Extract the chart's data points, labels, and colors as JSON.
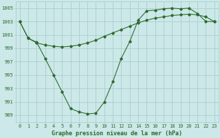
{
  "line1_x": [
    0,
    1,
    2,
    3,
    4,
    5,
    6,
    7,
    8,
    9,
    10,
    11,
    12,
    13,
    14,
    15,
    16,
    17,
    18,
    19,
    20,
    21,
    22,
    23
  ],
  "line1_y": [
    1003,
    1000.5,
    999.9,
    997.5,
    995.0,
    992.5,
    990.0,
    989.5,
    989.2,
    989.3,
    991.0,
    994.0,
    997.5,
    1000.0,
    1003.2,
    1004.6,
    1004.7,
    1004.9,
    1005.0,
    1004.9,
    1005.0,
    1004.2,
    1003.0,
    1003.0
  ],
  "line2_x": [
    0,
    1,
    2,
    3,
    4,
    5,
    6,
    7,
    8,
    9,
    10,
    11,
    12,
    13,
    14,
    15,
    16,
    17,
    18,
    19,
    20,
    21,
    22,
    23
  ],
  "line2_y": [
    1003,
    1000.5,
    999.8,
    999.5,
    999.3,
    999.2,
    999.3,
    999.5,
    999.8,
    1000.2,
    1000.8,
    1001.3,
    1001.8,
    1002.3,
    1002.8,
    1003.2,
    1003.5,
    1003.7,
    1003.9,
    1004.0,
    1004.1,
    1004.0,
    1003.7,
    1003.0
  ],
  "line_color": "#2d6a2d",
  "bg_color": "#cce8e8",
  "grid_color": "#aacece",
  "xlabel": "Graphe pression niveau de la mer (hPa)",
  "ylim": [
    988,
    1006
  ],
  "xlim": [
    -0.5,
    23.5
  ],
  "yticks": [
    989,
    991,
    993,
    995,
    997,
    999,
    1001,
    1003,
    1005
  ],
  "xticks": [
    0,
    1,
    2,
    3,
    4,
    5,
    6,
    7,
    8,
    9,
    10,
    11,
    12,
    13,
    14,
    15,
    16,
    17,
    18,
    19,
    20,
    21,
    22,
    23
  ],
  "xtick_labels": [
    "0",
    "1",
    "2",
    "3",
    "4",
    "5",
    "6",
    "7",
    "8",
    "9",
    "10",
    "11",
    "12",
    "13",
    "14",
    "15",
    "16",
    "17",
    "18",
    "19",
    "20",
    "21",
    "22",
    "23"
  ],
  "ytick_labels": [
    "989",
    "991",
    "993",
    "995",
    "997",
    "999",
    "1001",
    "1003",
    "1005"
  ],
  "marker": "D",
  "markersize": 1.8,
  "linewidth": 0.8,
  "xlabel_fontsize": 6.0,
  "tick_fontsize": 5.0
}
